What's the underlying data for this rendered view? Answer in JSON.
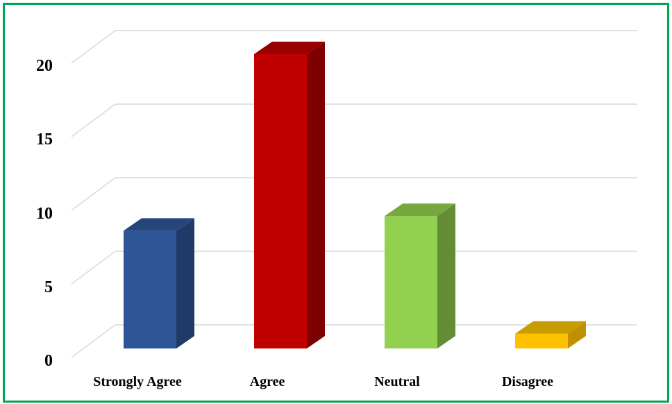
{
  "chart_data": {
    "type": "bar",
    "categories": [
      "Strongly Agree",
      "Agree",
      "Neutral",
      "Disagree"
    ],
    "values": [
      8,
      20,
      9,
      1
    ],
    "ylim": [
      0,
      20
    ],
    "yticks": [
      "0",
      "5",
      "10",
      "15",
      "20"
    ],
    "grid": true,
    "colors": [
      "#2e5597",
      "#c00000",
      "#92d050",
      "#ffc000"
    ],
    "side_colors": [
      "#1f3a66",
      "#7f0000",
      "#638c36",
      "#bf9000"
    ],
    "top_colors": [
      "#25467c",
      "#9a0000",
      "#76a83f",
      "#c79c00"
    ],
    "border_color": "#00a651",
    "grid_color": "#d9d9d9"
  }
}
